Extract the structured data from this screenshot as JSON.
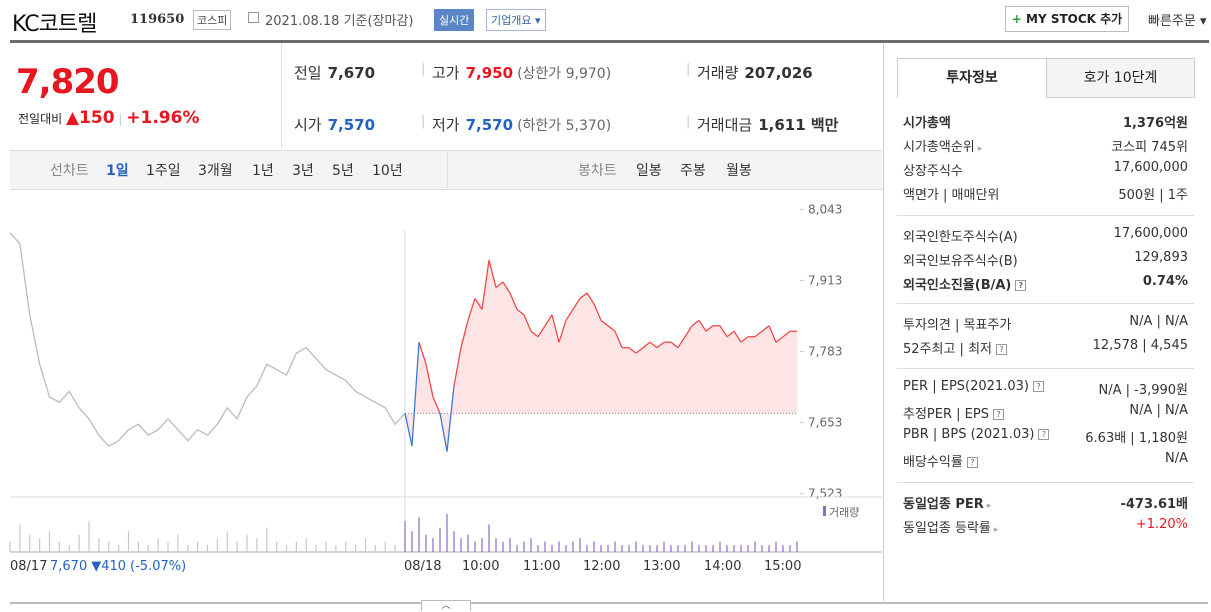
{
  "header": {
    "name": "KC코트렐",
    "code": "119650",
    "market": "코스피",
    "date": "2021.08.18 기준(장마감)",
    "realtime": "실시간",
    "company_info": "기업개요",
    "my_stock": "MY STOCK 추가",
    "quick_order": "빠른주문"
  },
  "quote": {
    "price": "7,820",
    "change_label": "전일대비",
    "change": "150",
    "change_pct": "+1.96%",
    "items": [
      {
        "label": "전일",
        "value": "7,670"
      },
      {
        "label": "고가",
        "value": "7,950",
        "sub": "(상한가 9,970)"
      },
      {
        "label": "거래량",
        "value": "207,026"
      },
      {
        "label": "시가",
        "value": "7,570"
      },
      {
        "label": "저가",
        "value": "7,570",
        "sub": "(하한가 5,370)"
      },
      {
        "label": "거래대금",
        "value": "1,611 백만"
      }
    ]
  },
  "periods": {
    "line_label": "선차트",
    "line": [
      "1일",
      "1주일",
      "3개월",
      "1년",
      "3년",
      "5년",
      "10년"
    ],
    "candle_label": "봉차트",
    "candle": [
      "일봉",
      "주봉",
      "월봉"
    ]
  },
  "chart_data": {
    "type": "line",
    "ylim": [
      7517,
      8060
    ],
    "yticks": [
      {
        "value": 8043,
        "label": "8,043"
      },
      {
        "value": 7913,
        "label": "7,913"
      },
      {
        "value": 7783,
        "label": "7,783"
      },
      {
        "value": 7653,
        "label": "7,653"
      },
      {
        "value": 7523,
        "label": "7,523"
      }
    ],
    "base": 7670,
    "x_labels": [
      "08/17",
      "08/18",
      "10:00",
      "11:00",
      "12:00",
      "13:00",
      "14:00",
      "15:00"
    ],
    "prev_summary": {
      "close": "7,670",
      "change": "▼410",
      "pct": "(-5.07%)"
    },
    "volume_label": "거래량",
    "series": [
      {
        "color": "#bbbbbb",
        "values": [
          8000,
          7980,
          7850,
          7760,
          7700,
          7690,
          7710,
          7680,
          7660,
          7630,
          7610,
          7620,
          7640,
          7650,
          7630,
          7640,
          7660,
          7640,
          7620,
          7640,
          7630,
          7650,
          7680,
          7660,
          7700,
          7720,
          7760,
          7750,
          7740,
          7780,
          7790,
          7770,
          7750,
          7740,
          7730,
          7710,
          7700,
          7690,
          7680,
          7650,
          7670
        ],
        "volume": [
          3,
          8,
          5,
          4,
          6,
          3,
          2,
          5,
          9,
          4,
          3,
          2,
          6,
          3,
          2,
          4,
          3,
          5,
          2,
          3,
          2,
          4,
          6,
          3,
          5,
          4,
          7,
          3,
          2,
          3,
          4,
          2,
          3,
          2,
          3,
          2,
          4,
          2,
          3,
          2,
          3
        ]
      },
      {
        "color": "#f04848",
        "down_color": "#3c78d8",
        "values": [
          7670,
          7610,
          7800,
          7760,
          7700,
          7670,
          7600,
          7720,
          7790,
          7840,
          7880,
          7860,
          7950,
          7900,
          7910,
          7890,
          7860,
          7850,
          7820,
          7810,
          7830,
          7850,
          7800,
          7840,
          7860,
          7880,
          7890,
          7870,
          7840,
          7830,
          7820,
          7790,
          7790,
          7780,
          7790,
          7800,
          7790,
          7800,
          7800,
          7790,
          7810,
          7830,
          7840,
          7820,
          7830,
          7830,
          7810,
          7820,
          7800,
          7810,
          7810,
          7820,
          7830,
          7800,
          7810,
          7820,
          7820
        ],
        "volume": [
          9,
          6,
          10,
          5,
          4,
          7,
          11,
          6,
          4,
          5,
          3,
          4,
          8,
          4,
          3,
          4,
          2,
          3,
          4,
          2,
          3,
          2,
          3,
          2,
          3,
          4,
          2,
          3,
          2,
          2,
          3,
          2,
          2,
          3,
          2,
          2,
          2,
          3,
          2,
          2,
          2,
          3,
          2,
          2,
          2,
          3,
          2,
          2,
          2,
          2,
          3,
          2,
          2,
          3,
          2,
          2,
          3
        ]
      }
    ]
  },
  "info": {
    "tabs": [
      "투자정보",
      "호가 10단계"
    ],
    "groups": [
      [
        {
          "label": "시가총액",
          "value": "1,376억원"
        },
        {
          "label": "시가총액순위",
          "value": "코스피 745위"
        },
        {
          "label": "상장주식수",
          "value": "17,600,000"
        },
        {
          "label": "액면가 | 매매단위",
          "value": "500원 | 1주"
        }
      ],
      [
        {
          "label": "외국인한도주식수(A)",
          "value": "17,600,000"
        },
        {
          "label": "외국인보유주식수(B)",
          "value": "129,893"
        },
        {
          "label": "외국인소진율(B/A)",
          "value": "0.74%"
        }
      ],
      [
        {
          "label": "투자의견 | 목표주가",
          "value": "N/A | N/A"
        },
        {
          "label": "52주최고 | 최저",
          "value": "12,578 | 4,545"
        }
      ],
      [
        {
          "label": "PER | EPS(2021.03)",
          "value": "N/A | -3,990원"
        },
        {
          "label": "추정PER | EPS",
          "value": "N/A | N/A"
        },
        {
          "label": "PBR | BPS (2021.03)",
          "value": "6.63배 | 1,180원"
        },
        {
          "label": "배당수익률",
          "value": "N/A"
        }
      ],
      [
        {
          "label": "동일업종 PER",
          "value": "-473.61배"
        },
        {
          "label": "동일업종 등락률",
          "value": "+1.20%"
        }
      ]
    ]
  }
}
